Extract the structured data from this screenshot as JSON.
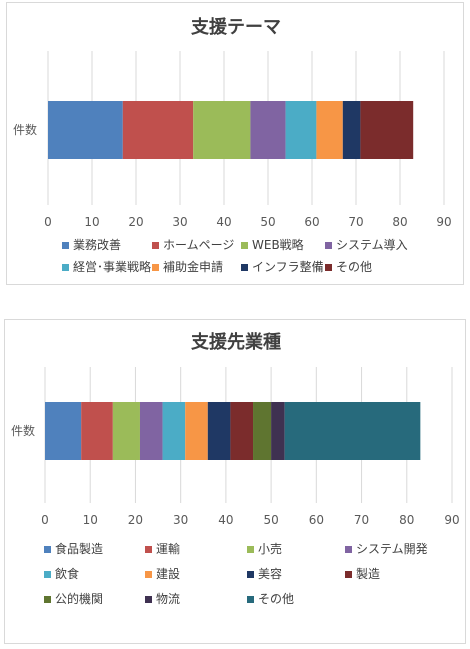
{
  "chart_data": [
    {
      "type": "bar",
      "stacked": true,
      "orientation": "horizontal",
      "title": "支援テーマ",
      "categories": [
        "件数"
      ],
      "xlim": [
        0,
        90
      ],
      "xticks": [
        0,
        10,
        20,
        30,
        40,
        50,
        60,
        70,
        80,
        90
      ],
      "grid": true,
      "legend_position": "bottom",
      "series": [
        {
          "name": "業務改善",
          "values": [
            17
          ],
          "color": "#4f81bd"
        },
        {
          "name": "ホームページ",
          "values": [
            16
          ],
          "color": "#c0504d"
        },
        {
          "name": "WEB戦略",
          "values": [
            13
          ],
          "color": "#9bbb59"
        },
        {
          "name": "システム導入",
          "values": [
            8
          ],
          "color": "#8064a2"
        },
        {
          "name": "経営･事業戦略",
          "values": [
            7
          ],
          "color": "#4bacc6"
        },
        {
          "name": "補助金申請",
          "values": [
            6
          ],
          "color": "#f79646"
        },
        {
          "name": "インフラ整備",
          "values": [
            4
          ],
          "color": "#1f3864"
        },
        {
          "name": "その他",
          "values": [
            12
          ],
          "color": "#7b2c2c"
        }
      ]
    },
    {
      "type": "bar",
      "stacked": true,
      "orientation": "horizontal",
      "title": "支援先業種",
      "categories": [
        "件数"
      ],
      "xlim": [
        0,
        90
      ],
      "xticks": [
        0,
        10,
        20,
        30,
        40,
        50,
        60,
        70,
        80,
        90
      ],
      "grid": true,
      "legend_position": "bottom",
      "series": [
        {
          "name": "食品製造",
          "values": [
            8
          ],
          "color": "#4f81bd"
        },
        {
          "name": "運輸",
          "values": [
            7
          ],
          "color": "#c0504d"
        },
        {
          "name": "小売",
          "values": [
            6
          ],
          "color": "#9bbb59"
        },
        {
          "name": "システム開発",
          "values": [
            5
          ],
          "color": "#8064a2"
        },
        {
          "name": "飲食",
          "values": [
            5
          ],
          "color": "#4bacc6"
        },
        {
          "name": "建設",
          "values": [
            5
          ],
          "color": "#f79646"
        },
        {
          "name": "美容",
          "values": [
            5
          ],
          "color": "#1f3864"
        },
        {
          "name": "製造",
          "values": [
            5
          ],
          "color": "#7b2c2c"
        },
        {
          "name": "公的機関",
          "values": [
            4
          ],
          "color": "#5f7530"
        },
        {
          "name": "物流",
          "values": [
            3
          ],
          "color": "#3f3151"
        },
        {
          "name": "その他",
          "values": [
            30
          ],
          "color": "#276a7c"
        }
      ]
    }
  ]
}
